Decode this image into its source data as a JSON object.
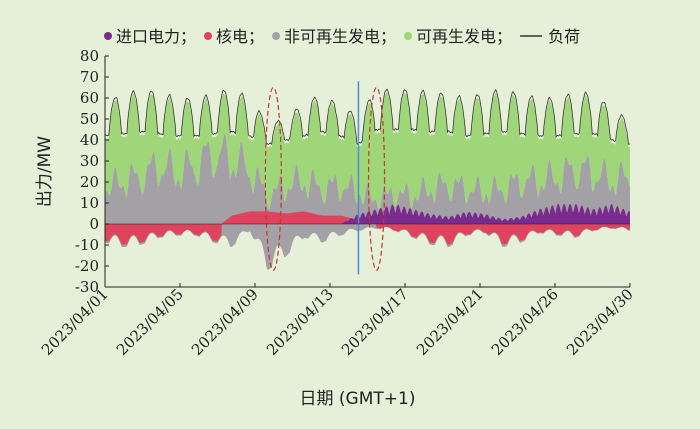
{
  "chart_data": {
    "type": "area",
    "xlabel": "日期 (GMT+1)",
    "ylabel": "出力/MW",
    "ylim": [
      -30,
      80
    ],
    "yticks": [
      -30,
      -20,
      -10,
      0,
      10,
      20,
      30,
      40,
      50,
      60,
      70,
      80
    ],
    "x_tick_labels": [
      "2023/04/01",
      "2023/04/05",
      "2023/04/09",
      "2023/04/13",
      "2023/04/17",
      "2023/04/21",
      "2023/04/26",
      "2023/04/30"
    ],
    "x_range_days": [
      1,
      30
    ],
    "legend": [
      {
        "key": "import",
        "label": "进口电力；",
        "color": "#7b2a8e",
        "marker": "dot"
      },
      {
        "key": "nuclear",
        "label": "核电；",
        "color": "#e0435d",
        "marker": "dot"
      },
      {
        "key": "nonrenew",
        "label": "非可再生发电；",
        "color": "#a3a0a6",
        "marker": "dot"
      },
      {
        "key": "renew",
        "label": "可再生发电；",
        "color": "#9fd67a",
        "marker": "dot"
      },
      {
        "key": "load",
        "label": "负荷",
        "color": "#333333",
        "marker": "line"
      }
    ],
    "daily_values": {
      "day": [
        1,
        2,
        3,
        4,
        5,
        6,
        7,
        8,
        9,
        10,
        11,
        12,
        13,
        14,
        15,
        16,
        17,
        18,
        19,
        20,
        21,
        22,
        23,
        24,
        25,
        26,
        27,
        28,
        29,
        30
      ],
      "load_peak": [
        58,
        62,
        64,
        63,
        60,
        60,
        62,
        65,
        60,
        48,
        50,
        58,
        62,
        56,
        52,
        64,
        64,
        64,
        63,
        62,
        60,
        63,
        64,
        62,
        60,
        60,
        63,
        62,
        55,
        49
      ],
      "load_trough": [
        42,
        43,
        44,
        43,
        42,
        42,
        43,
        44,
        42,
        38,
        40,
        42,
        44,
        42,
        38,
        45,
        45,
        45,
        44,
        44,
        42,
        43,
        44,
        43,
        42,
        42,
        43,
        43,
        40,
        38
      ],
      "nonrenew_top": [
        18,
        22,
        24,
        30,
        26,
        30,
        36,
        33,
        28,
        14,
        20,
        22,
        18,
        20,
        16,
        12,
        16,
        14,
        18,
        20,
        18,
        16,
        18,
        22,
        22,
        24,
        28,
        26,
        22,
        24
      ],
      "nuclear_top": [
        -4,
        -3,
        -5,
        -6,
        -4,
        -6,
        -3,
        4,
        6,
        6,
        5,
        6,
        4,
        4,
        2,
        0,
        0,
        0,
        0,
        0,
        0,
        0,
        0,
        0,
        0,
        0,
        0,
        0,
        0,
        0
      ],
      "net_low": [
        -8,
        -10,
        -9,
        -6,
        -5,
        -5,
        -8,
        -10,
        -3,
        -20,
        -14,
        -6,
        -8,
        -5,
        -3,
        -2,
        -3,
        -6,
        -9,
        -10,
        -5,
        -4,
        -10,
        -8,
        -4,
        -5,
        -6,
        -3,
        -2,
        -3
      ],
      "import_top": [
        0,
        0,
        0,
        0,
        0,
        0,
        0,
        0,
        0,
        0,
        0,
        0,
        0,
        0,
        4,
        6,
        8,
        6,
        4,
        3,
        5,
        4,
        2,
        3,
        6,
        8,
        8,
        6,
        8,
        5
      ]
    },
    "annotations": [
      {
        "type": "dashed-ellipse",
        "color": "#c0392b",
        "day": 10.3,
        "y_range": [
          -22,
          65
        ]
      },
      {
        "type": "dashed-ellipse",
        "color": "#c0392b",
        "day": 16.0,
        "y_range": [
          -22,
          65
        ]
      },
      {
        "type": "vertical-line",
        "color": "#4a90d9",
        "day": 15.0,
        "y_range": [
          -24,
          68
        ]
      }
    ]
  }
}
